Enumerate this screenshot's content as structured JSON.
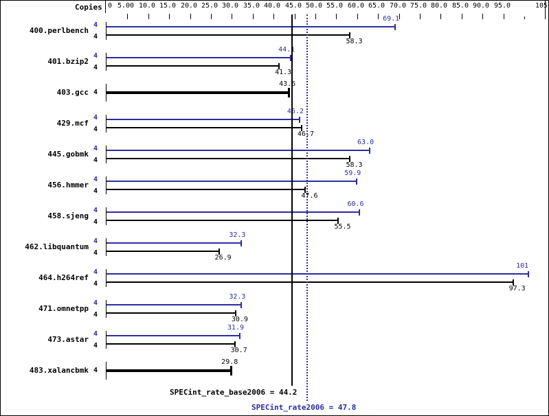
{
  "header": {
    "copies_label": "Copies"
  },
  "colors": {
    "peak": "#2a2ca0",
    "base": "#000000"
  },
  "axis": {
    "ticks": [
      {
        "value": 0,
        "label": "0"
      },
      {
        "value": 5,
        "label": "5.00"
      },
      {
        "value": 10,
        "label": "10.0"
      },
      {
        "value": 15,
        "label": "15.0"
      },
      {
        "value": 20,
        "label": "20.0"
      },
      {
        "value": 25,
        "label": "25.0"
      },
      {
        "value": 30,
        "label": "30.0"
      },
      {
        "value": 35,
        "label": "35.0"
      },
      {
        "value": 40,
        "label": "40.0"
      },
      {
        "value": 45,
        "label": "45.0"
      },
      {
        "value": 50,
        "label": "50.0"
      },
      {
        "value": 55,
        "label": "55.0"
      },
      {
        "value": 60,
        "label": "60.0"
      },
      {
        "value": 65,
        "label": "65.0"
      },
      {
        "value": 70,
        "label": "70.0"
      },
      {
        "value": 75,
        "label": "75.0"
      },
      {
        "value": 80,
        "label": "80.0"
      },
      {
        "value": 85,
        "label": "85.0"
      },
      {
        "value": 90,
        "label": "90.0"
      },
      {
        "value": 95,
        "label": "95.0"
      },
      {
        "value": 100,
        "label": ""
      },
      {
        "value": 105,
        "label": "105"
      }
    ]
  },
  "summary": {
    "base_label": "SPECint_rate_base2006 = 44.2",
    "peak_label": "SPECint_rate2006 = 47.8"
  },
  "chart_data": {
    "type": "bar",
    "orientation": "horizontal",
    "title": "",
    "xlabel": "",
    "ylabel": "Copies",
    "xlim": [
      0,
      105
    ],
    "grid": false,
    "categories": [
      "400.perlbench",
      "401.bzip2",
      "403.gcc",
      "429.mcf",
      "445.gobmk",
      "456.hmmer",
      "458.sjeng",
      "462.libquantum",
      "464.h264ref",
      "471.omnetpp",
      "473.astar",
      "483.xalancbmk"
    ],
    "series": [
      {
        "name": "SPECint_rate2006 (peak)",
        "color": "#2a2ca0",
        "copies": [
          4,
          4,
          null,
          4,
          4,
          4,
          4,
          4,
          4,
          4,
          4,
          null
        ],
        "values": [
          69.1,
          44.1,
          null,
          46.2,
          63.0,
          59.9,
          60.6,
          32.3,
          101,
          32.3,
          31.9,
          null
        ],
        "labels": [
          "69.1",
          "44.1",
          "",
          "46.2",
          "63.0",
          "59.9",
          "60.6",
          "32.3",
          "101",
          "32.3",
          "31.9",
          ""
        ]
      },
      {
        "name": "SPECint_rate_base2006 (base)",
        "color": "#000000",
        "copies": [
          4,
          4,
          4,
          4,
          4,
          4,
          4,
          4,
          4,
          4,
          4,
          4
        ],
        "values": [
          58.3,
          41.3,
          43.6,
          46.7,
          58.3,
          47.6,
          55.5,
          26.9,
          97.3,
          30.9,
          30.7,
          29.8
        ],
        "labels": [
          "58.3",
          "41.3",
          "43.6",
          "46.7",
          "58.3",
          "47.6",
          "55.5",
          "26.9",
          "97.3",
          "30.9",
          "30.7",
          "29.8"
        ]
      }
    ],
    "reference_lines": [
      {
        "name": "SPECint_rate_base2006",
        "value": 44.2,
        "style": "solid",
        "color": "#000000"
      },
      {
        "name": "SPECint_rate2006",
        "value": 47.8,
        "style": "dotted",
        "color": "#2a2ca0"
      }
    ]
  },
  "benchmarks": [
    {
      "name": "400.perlbench",
      "peak_copies": "4",
      "base_copies": "4",
      "peak_label": "69.1",
      "base_label": "58.3"
    },
    {
      "name": "401.bzip2",
      "peak_copies": "4",
      "base_copies": "4",
      "peak_label": "44.1",
      "base_label": "41.3"
    },
    {
      "name": "403.gcc",
      "peak_copies": "",
      "base_copies": "4",
      "peak_label": "",
      "base_label": "43.6"
    },
    {
      "name": "429.mcf",
      "peak_copies": "4",
      "base_copies": "4",
      "peak_label": "46.2",
      "base_label": "46.7"
    },
    {
      "name": "445.gobmk",
      "peak_copies": "4",
      "base_copies": "4",
      "peak_label": "63.0",
      "base_label": "58.3"
    },
    {
      "name": "456.hmmer",
      "peak_copies": "4",
      "base_copies": "4",
      "peak_label": "59.9",
      "base_label": "47.6"
    },
    {
      "name": "458.sjeng",
      "peak_copies": "4",
      "base_copies": "4",
      "peak_label": "60.6",
      "base_label": "55.5"
    },
    {
      "name": "462.libquantum",
      "peak_copies": "4",
      "base_copies": "4",
      "peak_label": "32.3",
      "base_label": "26.9"
    },
    {
      "name": "464.h264ref",
      "peak_copies": "4",
      "base_copies": "4",
      "peak_label": "101",
      "base_label": "97.3"
    },
    {
      "name": "471.omnetpp",
      "peak_copies": "4",
      "base_copies": "4",
      "peak_label": "32.3",
      "base_label": "30.9"
    },
    {
      "name": "473.astar",
      "peak_copies": "4",
      "base_copies": "4",
      "peak_label": "31.9",
      "base_label": "30.7"
    },
    {
      "name": "483.xalancbmk",
      "peak_copies": "",
      "base_copies": "4",
      "peak_label": "",
      "base_label": "29.8"
    }
  ]
}
